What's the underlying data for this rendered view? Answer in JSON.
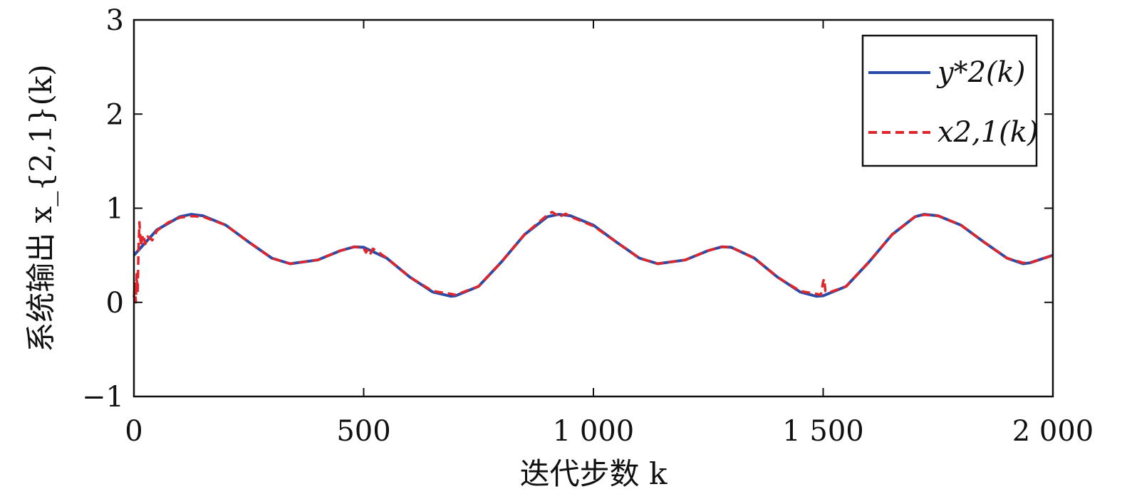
{
  "chart_data": {
    "type": "line",
    "xlabel": "迭代步数 k",
    "ylabel": "系统输出 x_{2,1}(k)",
    "xlim": [
      0,
      2000
    ],
    "ylim": [
      -1,
      3
    ],
    "x_ticks": [
      0,
      500,
      1000,
      1500,
      2000
    ],
    "x_tick_labels": [
      "0",
      "500",
      "1 000",
      "1 500",
      "2 000"
    ],
    "y_ticks": [
      -1,
      0,
      1,
      2,
      3
    ],
    "y_tick_labels": [
      "−1",
      "0",
      "1",
      "2",
      "3"
    ],
    "grid": false,
    "legend_position": "top-right",
    "series": [
      {
        "name": "y*2(k)",
        "color": "#2b4ba8",
        "style": "solid",
        "x": [
          0,
          50,
          100,
          125,
          150,
          200,
          250,
          300,
          340,
          400,
          450,
          480,
          500,
          550,
          600,
          650,
          690,
          700,
          750,
          800,
          850,
          900,
          925,
          950,
          1000,
          1050,
          1100,
          1140,
          1200,
          1250,
          1280,
          1300,
          1350,
          1400,
          1450,
          1485,
          1500,
          1550,
          1600,
          1650,
          1700,
          1720,
          1750,
          1800,
          1850,
          1900,
          1935,
          1950,
          2000
        ],
        "y": [
          0.5,
          0.77,
          0.91,
          0.935,
          0.92,
          0.82,
          0.64,
          0.47,
          0.41,
          0.45,
          0.55,
          0.59,
          0.585,
          0.47,
          0.27,
          0.11,
          0.065,
          0.07,
          0.17,
          0.43,
          0.72,
          0.91,
          0.935,
          0.92,
          0.82,
          0.64,
          0.47,
          0.41,
          0.45,
          0.55,
          0.59,
          0.585,
          0.47,
          0.27,
          0.11,
          0.065,
          0.07,
          0.17,
          0.43,
          0.72,
          0.91,
          0.935,
          0.92,
          0.82,
          0.64,
          0.47,
          0.41,
          0.42,
          0.5
        ]
      },
      {
        "name": "x2,1(k)",
        "color": "#e0262b",
        "style": "dashed",
        "x": [
          0,
          2,
          4,
          6,
          8,
          10,
          12,
          15,
          20,
          25,
          30,
          40,
          50,
          75,
          100,
          125,
          150,
          200,
          250,
          300,
          340,
          400,
          450,
          480,
          500,
          505,
          510,
          515,
          520,
          530,
          550,
          600,
          650,
          690,
          700,
          750,
          800,
          850,
          900,
          910,
          920,
          925,
          930,
          940,
          950,
          1000,
          1050,
          1100,
          1140,
          1200,
          1250,
          1280,
          1300,
          1350,
          1400,
          1450,
          1485,
          1495,
          1500,
          1502,
          1505,
          1510,
          1550,
          1600,
          1650,
          1700,
          1720,
          1750,
          1800,
          1850,
          1900,
          1935,
          1950,
          2000
        ],
        "y": [
          0.05,
          0.2,
          0.0,
          0.3,
          0.1,
          0.55,
          0.85,
          0.6,
          0.72,
          0.62,
          0.7,
          0.66,
          0.76,
          0.85,
          0.9,
          0.915,
          0.91,
          0.82,
          0.64,
          0.47,
          0.41,
          0.45,
          0.55,
          0.59,
          0.575,
          0.53,
          0.57,
          0.52,
          0.57,
          0.54,
          0.47,
          0.27,
          0.12,
          0.09,
          0.08,
          0.17,
          0.43,
          0.72,
          0.93,
          0.96,
          0.93,
          0.95,
          0.92,
          0.94,
          0.91,
          0.81,
          0.64,
          0.47,
          0.41,
          0.45,
          0.55,
          0.59,
          0.585,
          0.47,
          0.27,
          0.12,
          0.09,
          0.08,
          0.22,
          0.25,
          0.12,
          0.1,
          0.17,
          0.43,
          0.72,
          0.91,
          0.93,
          0.92,
          0.82,
          0.64,
          0.47,
          0.42,
          0.42,
          0.5
        ]
      }
    ]
  }
}
